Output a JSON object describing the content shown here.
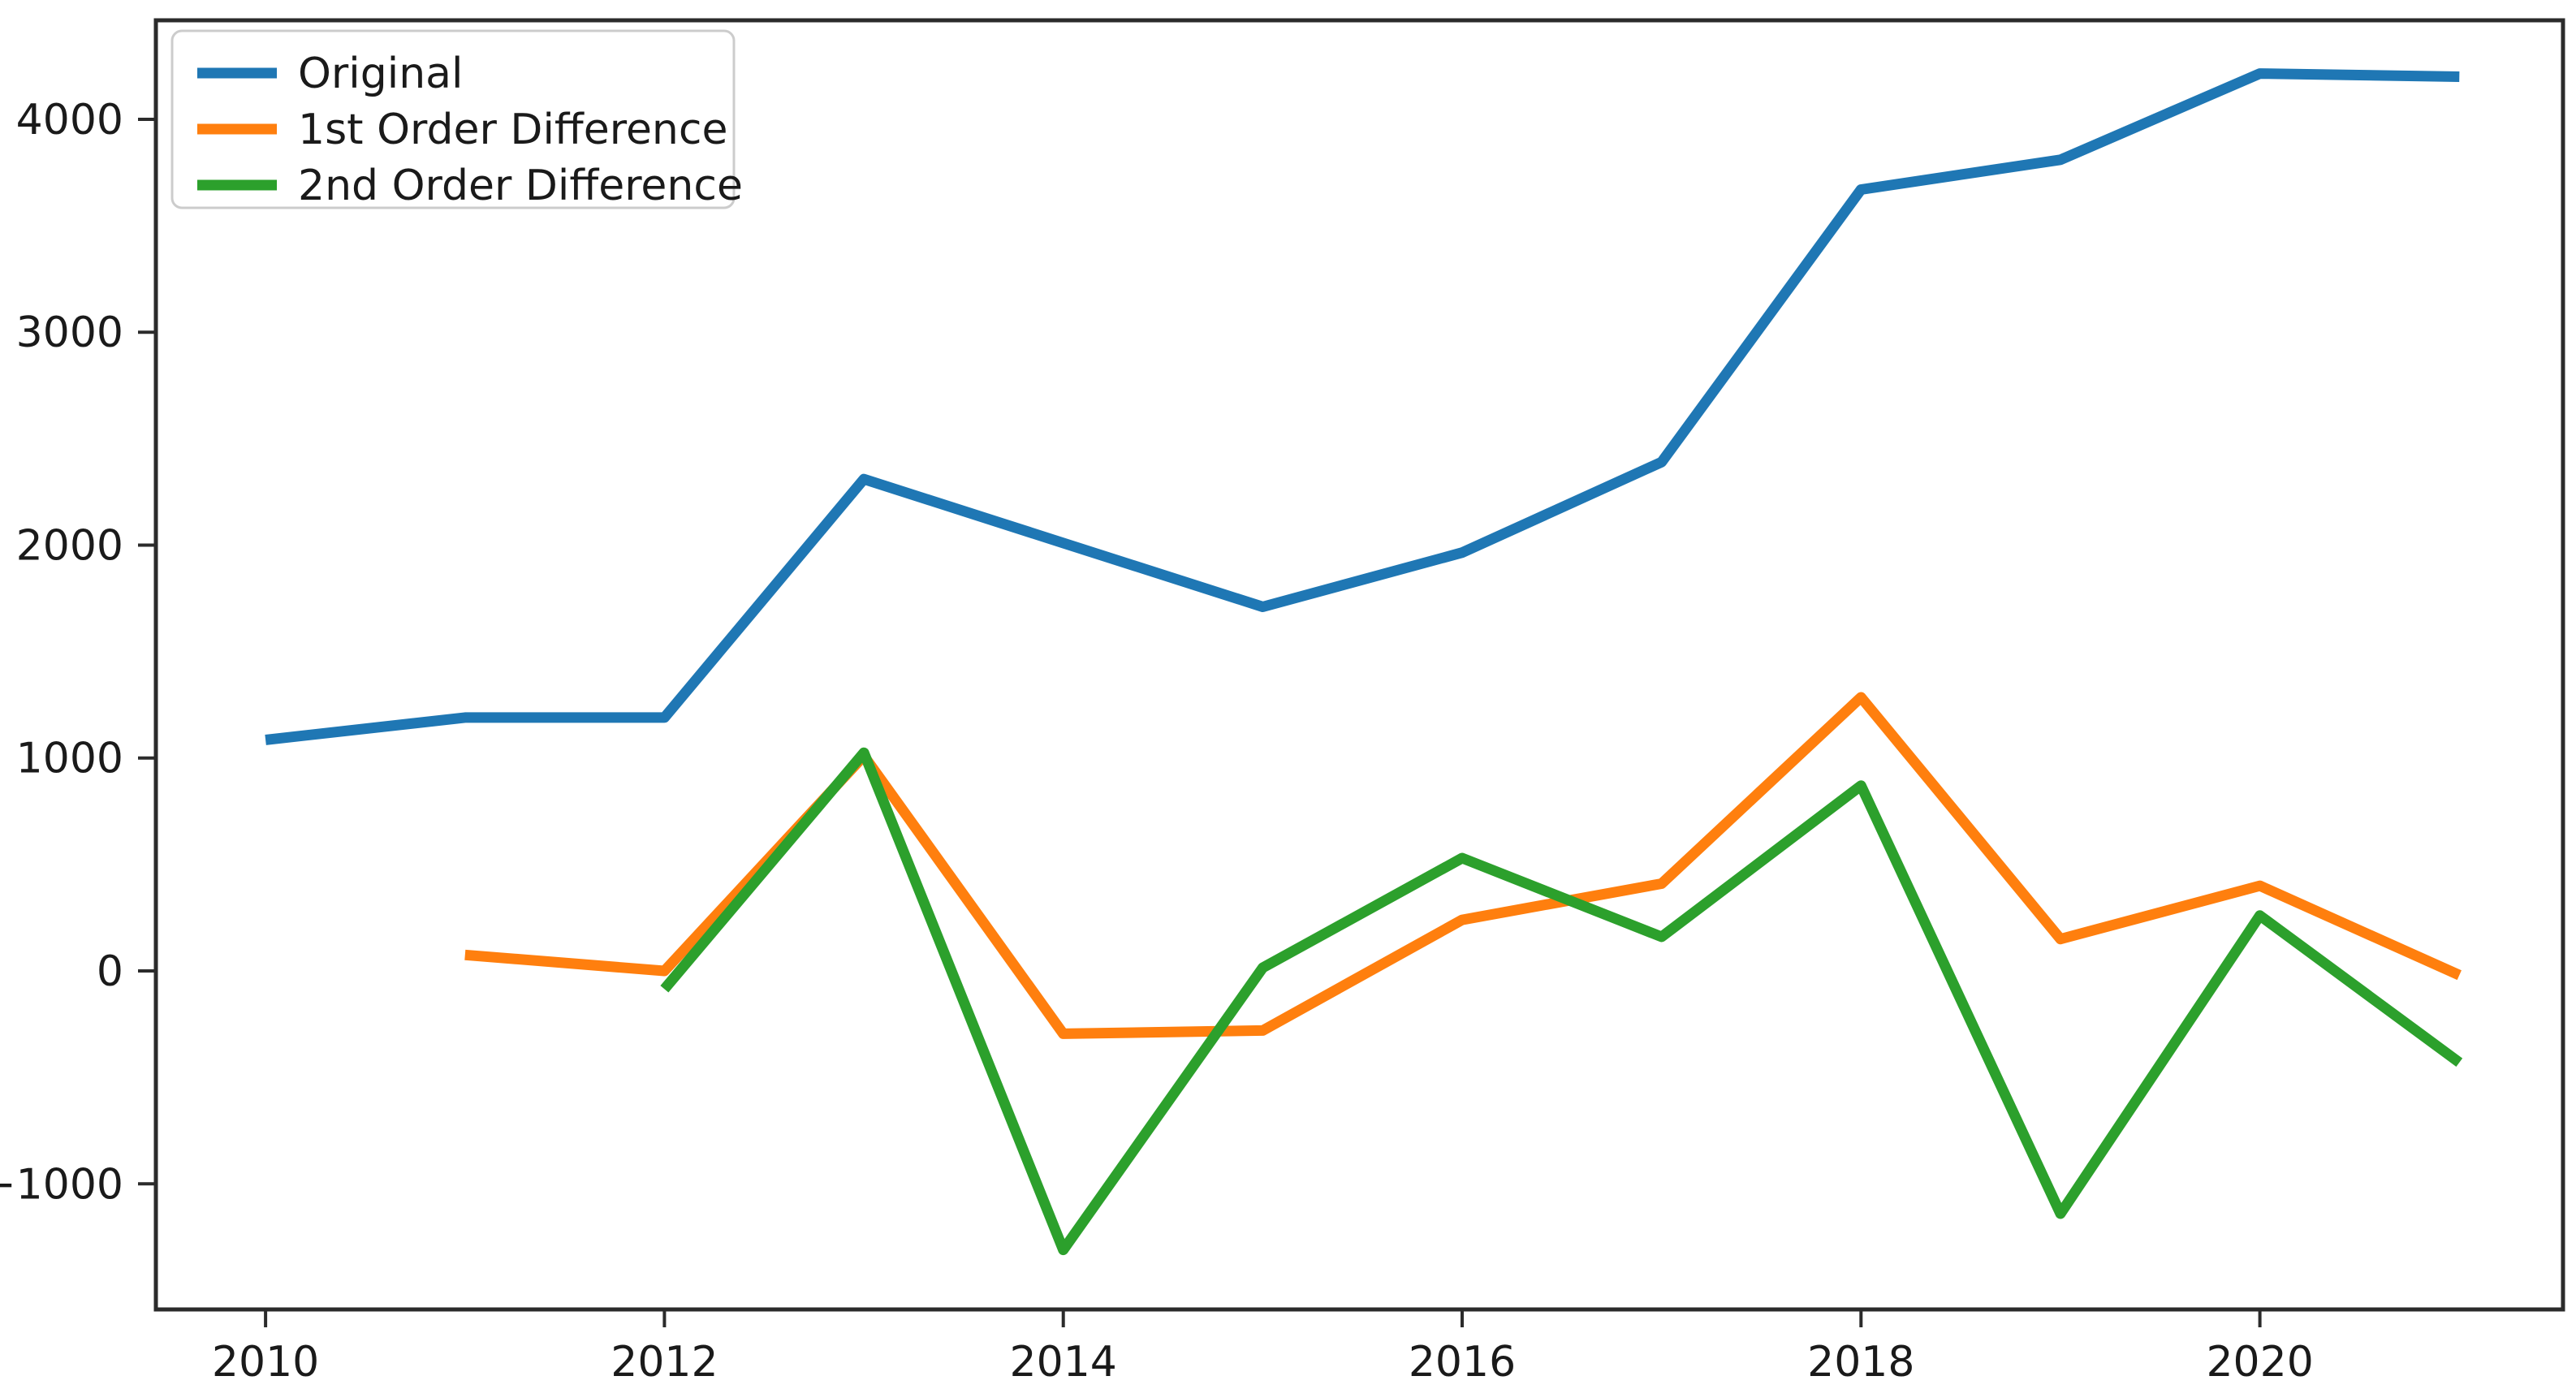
{
  "chart_data": {
    "type": "line",
    "title": "",
    "xlabel": "",
    "ylabel": "",
    "grid": false,
    "legend_position": "upper left",
    "xlim": [
      2009.45,
      2021.52
    ],
    "ylim": [
      -1590,
      4465
    ],
    "x_ticks": [
      2010,
      2012,
      2014,
      2016,
      2018,
      2020
    ],
    "y_ticks": [
      -1000,
      0,
      1000,
      2000,
      3000,
      4000
    ],
    "series": [
      {
        "name": "Original",
        "color": "#1f77b4",
        "points": [
          [
            2010,
            1085
          ],
          [
            2011,
            1190
          ],
          [
            2012,
            1190
          ],
          [
            2013,
            2310
          ],
          [
            2014,
            2010
          ],
          [
            2015,
            1710
          ],
          [
            2016,
            1965
          ],
          [
            2017,
            2390
          ],
          [
            2018,
            3670
          ],
          [
            2019,
            3810
          ],
          [
            2020,
            4215
          ],
          [
            2021,
            4200
          ]
        ]
      },
      {
        "name": "1st Order Difference",
        "color": "#ff7f0e",
        "points": [
          [
            2011,
            75
          ],
          [
            2012,
            0
          ],
          [
            2013,
            1010
          ],
          [
            2014,
            -295
          ],
          [
            2015,
            -280
          ],
          [
            2016,
            240
          ],
          [
            2017,
            410
          ],
          [
            2018,
            1285
          ],
          [
            2019,
            150
          ],
          [
            2020,
            400
          ],
          [
            2021,
            -20
          ]
        ]
      },
      {
        "name": "2nd Order Difference",
        "color": "#2ca02c",
        "points": [
          [
            2012,
            -85
          ],
          [
            2013,
            1025
          ],
          [
            2014,
            -1310
          ],
          [
            2015,
            15
          ],
          [
            2016,
            530
          ],
          [
            2017,
            160
          ],
          [
            2018,
            870
          ],
          [
            2019,
            -1140
          ],
          [
            2020,
            260
          ],
          [
            2021,
            -430
          ]
        ]
      }
    ]
  },
  "style_colors": {
    "spine": "#2b2b2b",
    "tick": "#2b2b2b",
    "label": "#1a1a1a",
    "legend_border": "#cccccc",
    "legend_fill": "#ffffff",
    "background": "#ffffff"
  }
}
